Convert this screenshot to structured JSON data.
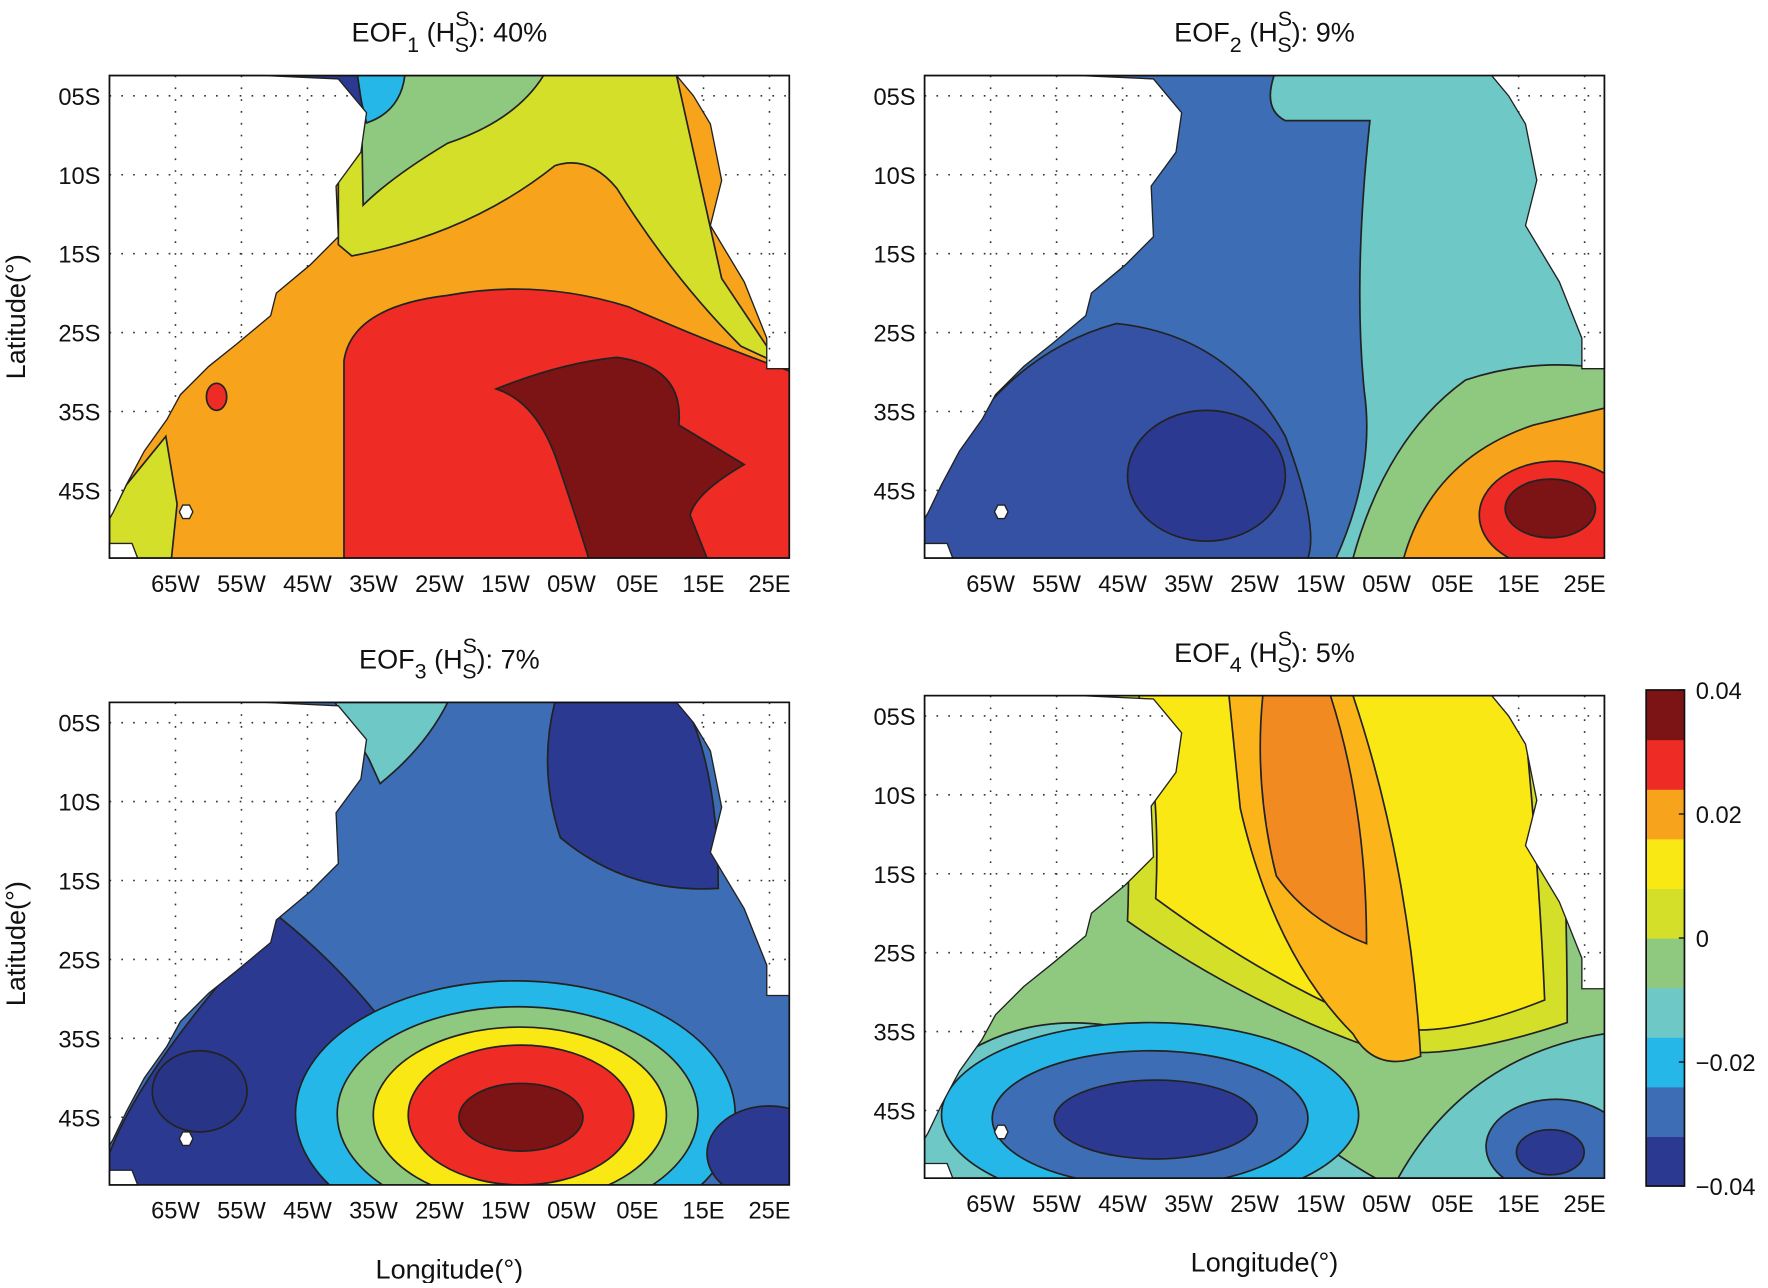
{
  "chart_data": [
    {
      "type": "contour",
      "title": [
        {
          "text": "EOF"
        },
        {
          "text": "1",
          "shift": "sub"
        },
        {
          "text": " (H"
        },
        {
          "text": "S",
          "shift": "sup"
        },
        {
          "text": "S",
          "shift": "sub-under"
        },
        {
          "text": "): 40%"
        }
      ],
      "ylabel": "Latitude(°)",
      "xlim": [
        -75,
        28
      ],
      "xticks": [
        {
          "value": -65,
          "label": "65W"
        },
        {
          "value": -55,
          "label": "55W"
        },
        {
          "value": -45,
          "label": "45W"
        },
        {
          "value": -35,
          "label": "35W"
        },
        {
          "value": -25,
          "label": "25W"
        },
        {
          "value": -15,
          "label": "15W"
        },
        {
          "value": -5,
          "label": "05W"
        },
        {
          "value": 5,
          "label": "05E"
        },
        {
          "value": 15,
          "label": "15E"
        },
        {
          "value": 25,
          "label": "25E"
        }
      ],
      "ycategories": [
        "05S",
        "10S",
        "15S",
        "25S",
        "35S",
        "45S"
      ],
      "grid": true
    },
    {
      "type": "contour",
      "title": [
        {
          "text": "EOF"
        },
        {
          "text": "2",
          "shift": "sub"
        },
        {
          "text": " (H"
        },
        {
          "text": "S",
          "shift": "sup"
        },
        {
          "text": "S",
          "shift": "sub-under"
        },
        {
          "text": "): 9%"
        }
      ],
      "xlim": [
        -75,
        28
      ],
      "xticks": [
        {
          "value": -65,
          "label": "65W"
        },
        {
          "value": -55,
          "label": "55W"
        },
        {
          "value": -45,
          "label": "45W"
        },
        {
          "value": -35,
          "label": "35W"
        },
        {
          "value": -25,
          "label": "25W"
        },
        {
          "value": -15,
          "label": "15W"
        },
        {
          "value": -5,
          "label": "05W"
        },
        {
          "value": 5,
          "label": "05E"
        },
        {
          "value": 15,
          "label": "15E"
        },
        {
          "value": 25,
          "label": "25E"
        }
      ],
      "ycategories": [
        "05S",
        "10S",
        "15S",
        "25S",
        "35S",
        "45S"
      ],
      "grid": true
    },
    {
      "type": "contour",
      "title": [
        {
          "text": "EOF"
        },
        {
          "text": "3",
          "shift": "sub"
        },
        {
          "text": " (H"
        },
        {
          "text": "S",
          "shift": "sup"
        },
        {
          "text": "S",
          "shift": "sub-under"
        },
        {
          "text": "): 7%"
        }
      ],
      "ylabel": "Latitude(°)",
      "xlabel": "Longitude(°)",
      "xlim": [
        -75,
        28
      ],
      "xticks": [
        {
          "value": -65,
          "label": "65W"
        },
        {
          "value": -55,
          "label": "55W"
        },
        {
          "value": -45,
          "label": "45W"
        },
        {
          "value": -35,
          "label": "35W"
        },
        {
          "value": -25,
          "label": "25W"
        },
        {
          "value": -15,
          "label": "15W"
        },
        {
          "value": -5,
          "label": "05W"
        },
        {
          "value": 5,
          "label": "05E"
        },
        {
          "value": 15,
          "label": "15E"
        },
        {
          "value": 25,
          "label": "25E"
        }
      ],
      "ycategories": [
        "05S",
        "10S",
        "15S",
        "25S",
        "35S",
        "45S"
      ],
      "grid": true
    },
    {
      "type": "contour",
      "title": [
        {
          "text": "EOF"
        },
        {
          "text": "4",
          "shift": "sub"
        },
        {
          "text": " (H"
        },
        {
          "text": "S",
          "shift": "sup"
        },
        {
          "text": "S",
          "shift": "sub-under"
        },
        {
          "text": "): 5%"
        }
      ],
      "xlabel": "Longitude(°)",
      "xlim": [
        -75,
        28
      ],
      "xticks": [
        {
          "value": -65,
          "label": "65W"
        },
        {
          "value": -55,
          "label": "55W"
        },
        {
          "value": -45,
          "label": "45W"
        },
        {
          "value": -35,
          "label": "35W"
        },
        {
          "value": -25,
          "label": "25W"
        },
        {
          "value": -15,
          "label": "15W"
        },
        {
          "value": -5,
          "label": "05W"
        },
        {
          "value": 5,
          "label": "05E"
        },
        {
          "value": 15,
          "label": "15E"
        },
        {
          "value": 25,
          "label": "25E"
        }
      ],
      "ycategories": [
        "05S",
        "10S",
        "15S",
        "25S",
        "35S",
        "45S"
      ],
      "grid": true
    },
    {
      "type": "colorbar",
      "ylim": [
        -0.04,
        0.04
      ],
      "yticks": [
        {
          "value": -0.04,
          "label": "−0.04"
        },
        {
          "value": -0.02,
          "label": "−0.02"
        },
        0,
        0.02,
        0.04
      ],
      "colors": [
        "#2b3990",
        "#3d6db5",
        "#26b7e9",
        "#6ec9c6",
        "#8fc97f",
        "#d4df2a",
        "#f9e814",
        "#f7a41c",
        "#ee2b24",
        "#7c1315"
      ]
    }
  ]
}
